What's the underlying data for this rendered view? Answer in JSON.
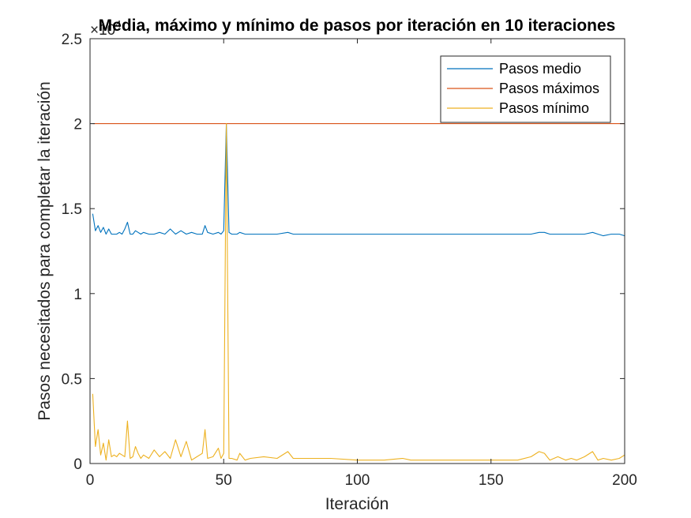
{
  "chart_data": {
    "type": "line",
    "title": "Media, máximo y mínimo de pasos por iteración en 10 iteraciones",
    "xlabel": "Iteración",
    "ylabel": "Pasos necesitados para completar la iteración",
    "xlim": [
      0,
      200
    ],
    "ylim": [
      0,
      2.5
    ],
    "y_exponent_label": "×10",
    "y_exponent_power": "4",
    "xticks": [
      0,
      50,
      100,
      150,
      200
    ],
    "xtick_labels": [
      "0",
      "50",
      "100",
      "150",
      "200"
    ],
    "yticks": [
      0,
      0.5,
      1,
      1.5,
      2,
      2.5
    ],
    "ytick_labels": [
      "0",
      "0.5",
      "1",
      "1.5",
      "2",
      "2.5"
    ],
    "grid": false,
    "legend_position": "top-right",
    "x": [
      1,
      2,
      3,
      4,
      5,
      6,
      7,
      8,
      9,
      10,
      11,
      12,
      13,
      14,
      15,
      16,
      17,
      18,
      19,
      20,
      22,
      24,
      26,
      28,
      30,
      32,
      34,
      36,
      38,
      40,
      42,
      43,
      44,
      46,
      48,
      49,
      50,
      51,
      52,
      53,
      55,
      56,
      58,
      60,
      65,
      70,
      74,
      76,
      80,
      90,
      100,
      110,
      117,
      120,
      130,
      140,
      150,
      160,
      165,
      168,
      170,
      172,
      175,
      178,
      180,
      182,
      185,
      188,
      190,
      192,
      195,
      198,
      200
    ],
    "series": [
      {
        "name": "Pasos medio",
        "color": "#0072BD",
        "values": [
          1.47,
          1.37,
          1.4,
          1.36,
          1.39,
          1.35,
          1.38,
          1.35,
          1.35,
          1.35,
          1.36,
          1.35,
          1.38,
          1.42,
          1.35,
          1.35,
          1.37,
          1.36,
          1.35,
          1.36,
          1.35,
          1.35,
          1.36,
          1.35,
          1.38,
          1.35,
          1.37,
          1.35,
          1.36,
          1.35,
          1.35,
          1.4,
          1.36,
          1.35,
          1.36,
          1.35,
          1.37,
          2.0,
          1.36,
          1.35,
          1.35,
          1.36,
          1.35,
          1.35,
          1.35,
          1.35,
          1.36,
          1.35,
          1.35,
          1.35,
          1.35,
          1.35,
          1.35,
          1.35,
          1.35,
          1.35,
          1.35,
          1.35,
          1.35,
          1.36,
          1.36,
          1.35,
          1.35,
          1.35,
          1.35,
          1.35,
          1.35,
          1.36,
          1.35,
          1.34,
          1.35,
          1.35,
          1.34
        ]
      },
      {
        "name": "Pasos máximos",
        "color": "#D95319",
        "values": [
          2,
          2,
          2,
          2,
          2,
          2,
          2,
          2,
          2,
          2,
          2,
          2,
          2,
          2,
          2,
          2,
          2,
          2,
          2,
          2,
          2,
          2,
          2,
          2,
          2,
          2,
          2,
          2,
          2,
          2,
          2,
          2,
          2,
          2,
          2,
          2,
          2,
          2,
          2,
          2,
          2,
          2,
          2,
          2,
          2,
          2,
          2,
          2,
          2,
          2,
          2,
          2,
          2,
          2,
          2,
          2,
          2,
          2,
          2,
          2,
          2,
          2,
          2,
          2,
          2,
          2,
          2,
          2,
          2,
          2,
          2,
          2,
          2
        ]
      },
      {
        "name": "Pasos mínimo",
        "color": "#EDB120",
        "values": [
          0.41,
          0.1,
          0.2,
          0.05,
          0.12,
          0.02,
          0.14,
          0.04,
          0.05,
          0.04,
          0.06,
          0.05,
          0.04,
          0.25,
          0.03,
          0.04,
          0.1,
          0.06,
          0.03,
          0.05,
          0.03,
          0.08,
          0.04,
          0.07,
          0.03,
          0.14,
          0.04,
          0.13,
          0.02,
          0.04,
          0.06,
          0.2,
          0.03,
          0.04,
          0.09,
          0.03,
          0.06,
          2.0,
          0.03,
          0.03,
          0.02,
          0.06,
          0.02,
          0.03,
          0.04,
          0.03,
          0.07,
          0.03,
          0.03,
          0.03,
          0.02,
          0.02,
          0.03,
          0.02,
          0.02,
          0.02,
          0.02,
          0.02,
          0.04,
          0.07,
          0.06,
          0.02,
          0.04,
          0.02,
          0.03,
          0.02,
          0.04,
          0.07,
          0.02,
          0.03,
          0.02,
          0.03,
          0.05
        ]
      }
    ]
  }
}
